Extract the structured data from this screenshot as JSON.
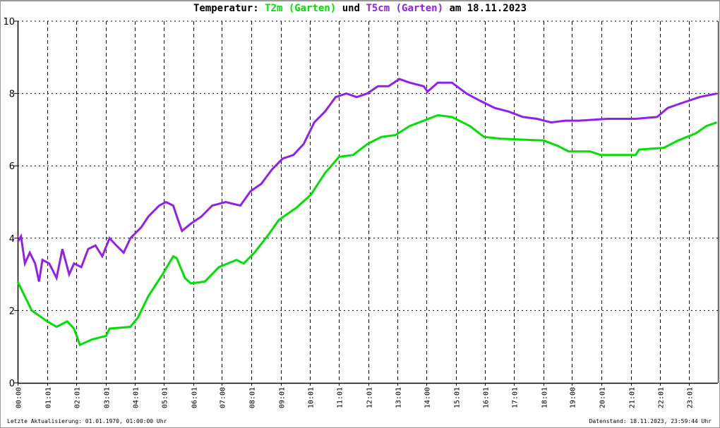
{
  "chart_data": {
    "type": "line",
    "title": {
      "prefix": "Temperatur:",
      "series1": "T2m (Garten)",
      "middle": "und",
      "series2": "T5cm (Garten)",
      "suffix": "am 18.11.2023"
    },
    "ylim": [
      0,
      10
    ],
    "yticks": [
      "0",
      "2",
      "4",
      "6",
      "8",
      "10"
    ],
    "xlim": [
      "00:00",
      "24:00"
    ],
    "xticks": [
      "00:00",
      "01:01",
      "02:01",
      "03:01",
      "04:01",
      "05:01",
      "06:01",
      "07:00",
      "08:01",
      "09:01",
      "10:01",
      "11:01",
      "12:01",
      "13:01",
      "14:00",
      "15:01",
      "16:01",
      "17:01",
      "18:01",
      "19:00",
      "20:01",
      "21:01",
      "22:01",
      "23:01"
    ],
    "grid": true,
    "series": [
      {
        "name": "T2m (Garten)",
        "color": "#00e000",
        "x": [
          "00:00",
          "00:29",
          "01:01",
          "01:20",
          "01:42",
          "01:56",
          "02:08",
          "02:33",
          "03:02",
          "03:09",
          "03:52",
          "04:07",
          "04:29",
          "04:58",
          "05:20",
          "05:27",
          "05:44",
          "05:56",
          "06:25",
          "06:54",
          "07:30",
          "07:45",
          "08:07",
          "08:36",
          "08:57",
          "09:34",
          "10:03",
          "10:32",
          "11:01",
          "11:30",
          "11:59",
          "12:28",
          "12:57",
          "13:26",
          "13:55",
          "14:24",
          "14:53",
          "15:30",
          "15:59",
          "16:35",
          "18:02",
          "18:31",
          "18:53",
          "19:37",
          "19:59",
          "21:11",
          "21:18",
          "22:09",
          "22:38",
          "23:15",
          "23:36",
          "23:58"
        ],
        "y": [
          2.8,
          2.0,
          1.7,
          1.55,
          1.7,
          1.5,
          1.05,
          1.2,
          1.3,
          1.5,
          1.55,
          1.8,
          2.4,
          3.0,
          3.5,
          3.45,
          2.9,
          2.75,
          2.8,
          3.2,
          3.4,
          3.3,
          3.6,
          4.1,
          4.5,
          4.85,
          5.2,
          5.8,
          6.25,
          6.3,
          6.6,
          6.8,
          6.85,
          7.1,
          7.25,
          7.4,
          7.35,
          7.1,
          6.8,
          6.75,
          6.7,
          6.55,
          6.4,
          6.4,
          6.3,
          6.3,
          6.45,
          6.5,
          6.7,
          6.9,
          7.1,
          7.2
        ]
      },
      {
        "name": "T5cm (Garten)",
        "color": "#9020f0",
        "x": [
          "00:00",
          "00:07",
          "00:15",
          "00:25",
          "00:36",
          "00:44",
          "00:51",
          "01:05",
          "01:20",
          "01:32",
          "01:46",
          "01:56",
          "02:11",
          "02:25",
          "02:40",
          "02:54",
          "03:09",
          "03:23",
          "03:38",
          "03:52",
          "04:14",
          "04:29",
          "04:51",
          "05:05",
          "05:20",
          "05:30",
          "05:38",
          "05:56",
          "06:18",
          "06:40",
          "07:08",
          "07:38",
          "07:59",
          "08:21",
          "08:43",
          "09:05",
          "09:27",
          "09:48",
          "10:10",
          "10:32",
          "10:54",
          "11:16",
          "11:37",
          "11:59",
          "12:21",
          "12:43",
          "13:05",
          "13:26",
          "13:55",
          "14:03",
          "14:24",
          "14:53",
          "15:23",
          "15:51",
          "16:21",
          "16:50",
          "17:19",
          "17:48",
          "18:17",
          "18:46",
          "19:15",
          "20:13",
          "21:11",
          "21:55",
          "22:17",
          "22:38",
          "23:22",
          "23:58"
        ],
        "y": [
          3.9,
          4.05,
          3.3,
          3.6,
          3.3,
          2.8,
          3.4,
          3.3,
          2.9,
          3.7,
          3.0,
          3.3,
          3.2,
          3.7,
          3.8,
          3.5,
          4.0,
          3.8,
          3.6,
          4.0,
          4.3,
          4.6,
          4.9,
          5.0,
          4.9,
          4.5,
          4.2,
          4.4,
          4.6,
          4.9,
          5.0,
          4.9,
          5.3,
          5.5,
          5.9,
          6.2,
          6.3,
          6.6,
          7.2,
          7.5,
          7.9,
          8.0,
          7.9,
          8.0,
          8.2,
          8.2,
          8.4,
          8.3,
          8.2,
          8.05,
          8.3,
          8.3,
          8.0,
          7.8,
          7.6,
          7.5,
          7.35,
          7.3,
          7.2,
          7.25,
          7.25,
          7.3,
          7.3,
          7.35,
          7.6,
          7.7,
          7.9,
          8.0
        ]
      }
    ]
  },
  "footer": {
    "last_update": "Letzte Aktualisierung: 01.01.1970, 01:00:00 Uhr",
    "data_state": "Datenstand: 18.11.2023, 23:59:44 Uhr"
  }
}
